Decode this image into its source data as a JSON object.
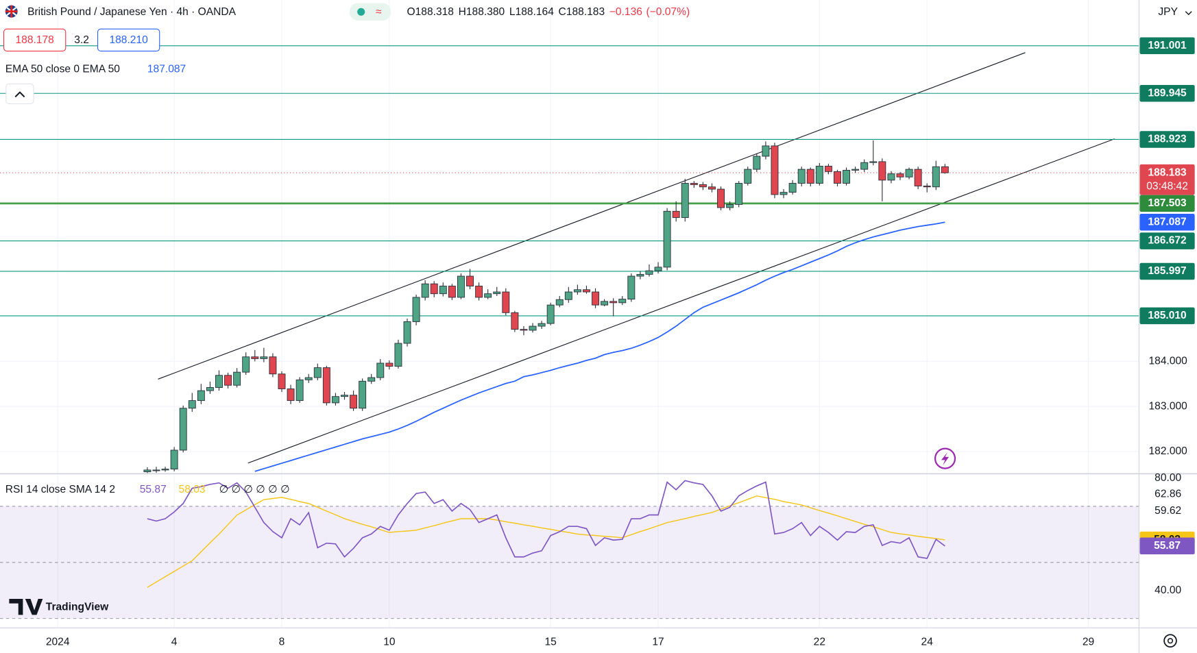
{
  "chart_data": {
    "type": "candlestick",
    "title": "British Pound / Japanese Yen · 4h · OANDA",
    "header": [
      {
        "key": "O",
        "value": 188.318
      },
      {
        "key": "H",
        "value": 188.38,
        "label": "188.380"
      },
      {
        "key": "L",
        "value": 188.164
      },
      {
        "key": "C",
        "value": 188.183
      }
    ],
    "change": {
      "value": -0.136,
      "label": "−0.136"
    },
    "change_pct": {
      "value": -0.07,
      "label": "(−0.07%)"
    },
    "sell": 188.178,
    "spread": 3.2,
    "buy": {
      "value": 188.21,
      "label": "188.210"
    },
    "currency": "JPY",
    "countdown": "03:48:42",
    "logo": "TradingView",
    "up_color": "#4fa486",
    "down_color": "#e0464f",
    "xlim": [
      -16.44,
      110.65
    ],
    "xticks": [
      {
        "value": -10,
        "label": "2024"
      },
      {
        "value": 3,
        "label": "4"
      },
      {
        "value": 15,
        "label": "8"
      },
      {
        "value": 27,
        "label": "10"
      },
      {
        "value": 45,
        "label": "15"
      },
      {
        "value": 57,
        "label": "17"
      },
      {
        "value": 75,
        "label": "22"
      },
      {
        "value": 87,
        "label": "24"
      },
      {
        "value": 105,
        "label": "29"
      }
    ],
    "ylim": [
      181.524,
      192.016
    ],
    "yticks": [
      {
        "value": 182,
        "label": "182.000"
      },
      {
        "value": 183,
        "label": "183.000"
      },
      {
        "value": 184,
        "label": "184.000"
      }
    ],
    "grid": true,
    "levels_color": "#089981",
    "levels": [
      {
        "value": 191.001
      },
      {
        "value": 189.945
      },
      {
        "value": 188.923
      },
      {
        "value": 187.503,
        "bold": true
      },
      {
        "value": 186.672
      },
      {
        "value": 185.997
      },
      {
        "value": 185.01,
        "label": "185.010"
      }
    ],
    "open": [
      181.55,
      181.59,
      181.59,
      181.61,
      182.03,
      182.96,
      183.13,
      183.35,
      183.42,
      183.69,
      183.47,
      183.76,
      184.1,
      184.06,
      184.1,
      183.72,
      183.39,
      183.13,
      183.59,
      183.64,
      183.86,
      183.08,
      183.22,
      183.25,
      182.96,
      183.56,
      183.64,
      183.96,
      183.89,
      184.4,
      184.88,
      185.42,
      185.72,
      185.5,
      185.67,
      185.42,
      185.89,
      185.67,
      185.42,
      185.5,
      185.54,
      185.08,
      184.71,
      184.69,
      184.78,
      184.84,
      185.25,
      185.37,
      185.54,
      185.59,
      185.54,
      185.25,
      185.33,
      185.3,
      185.38,
      185.89,
      185.93,
      186.01,
      186.09,
      187.33,
      187.19,
      187.95,
      187.92,
      187.87,
      187.82,
      187.41,
      187.48,
      187.95,
      188.26,
      188.55,
      188.78,
      187.7,
      187.75,
      187.95,
      188.26,
      187.95,
      188.33,
      188.21,
      187.95,
      188.24,
      188.26,
      188.41,
      188.43,
      188.02,
      188.16,
      188.09,
      188.26,
      187.89,
      187.87,
      188.318
    ],
    "high": [
      181.65,
      181.66,
      181.66,
      182.1,
      183.02,
      183.3,
      183.5,
      183.55,
      183.8,
      183.75,
      183.85,
      184.2,
      184.25,
      184.3,
      184.18,
      183.78,
      183.48,
      183.65,
      183.72,
      183.95,
      183.9,
      183.3,
      183.32,
      183.35,
      183.62,
      183.72,
      184.05,
      184.02,
      184.48,
      184.95,
      185.48,
      185.8,
      185.78,
      185.75,
      185.72,
      185.95,
      186.05,
      185.75,
      185.6,
      185.65,
      185.62,
      185.12,
      184.78,
      184.85,
      184.9,
      185.3,
      185.45,
      185.65,
      185.7,
      185.68,
      185.62,
      185.38,
      185.4,
      185.45,
      185.95,
      186.0,
      186.15,
      186.2,
      187.4,
      187.55,
      188.05,
      188.0,
      187.98,
      187.95,
      187.88,
      187.55,
      188.0,
      188.32,
      188.6,
      188.88,
      188.85,
      187.82,
      188.02,
      188.32,
      188.3,
      188.4,
      188.38,
      188.25,
      188.3,
      188.32,
      188.48,
      188.9,
      188.5,
      188.22,
      188.2,
      188.3,
      188.32,
      187.95,
      188.45,
      188.38
    ],
    "low": [
      181.5,
      181.53,
      181.55,
      181.56,
      181.98,
      182.88,
      183.05,
      183.28,
      183.35,
      183.4,
      183.42,
      183.7,
      184.0,
      183.98,
      183.65,
      183.32,
      183.05,
      183.08,
      183.52,
      183.58,
      183.02,
      183.02,
      183.15,
      182.9,
      182.9,
      183.5,
      183.58,
      183.82,
      183.84,
      184.33,
      184.8,
      185.35,
      185.42,
      185.44,
      185.36,
      185.38,
      185.6,
      185.35,
      185.38,
      185.45,
      185.02,
      184.65,
      184.58,
      184.64,
      184.72,
      184.8,
      185.2,
      185.3,
      185.48,
      185.5,
      185.18,
      185.22,
      185.0,
      185.25,
      185.32,
      185.82,
      185.88,
      185.95,
      186.02,
      187.1,
      187.1,
      187.85,
      187.8,
      187.75,
      187.35,
      187.35,
      187.42,
      187.9,
      188.2,
      188.48,
      187.62,
      187.62,
      187.7,
      187.88,
      187.88,
      187.9,
      188.15,
      187.88,
      187.9,
      188.18,
      188.2,
      188.35,
      187.55,
      187.95,
      188.02,
      188.04,
      187.82,
      187.75,
      187.8,
      188.164
    ],
    "close": [
      181.59,
      181.59,
      181.61,
      182.03,
      182.96,
      183.13,
      183.35,
      183.42,
      183.69,
      183.47,
      183.76,
      184.1,
      184.06,
      184.1,
      183.72,
      183.39,
      183.13,
      183.59,
      183.64,
      183.86,
      183.08,
      183.22,
      183.25,
      182.96,
      183.56,
      183.64,
      183.96,
      183.89,
      184.4,
      184.88,
      185.42,
      185.72,
      185.5,
      185.67,
      185.42,
      185.89,
      185.67,
      185.42,
      185.5,
      185.54,
      185.08,
      184.71,
      184.69,
      184.78,
      184.84,
      185.25,
      185.37,
      185.54,
      185.59,
      185.54,
      185.25,
      185.33,
      185.3,
      185.38,
      185.89,
      185.93,
      186.01,
      186.09,
      187.33,
      187.19,
      187.95,
      187.92,
      187.87,
      187.82,
      187.41,
      187.48,
      187.95,
      188.26,
      188.55,
      188.78,
      187.7,
      187.75,
      187.95,
      188.26,
      187.95,
      188.33,
      188.21,
      187.95,
      188.24,
      188.26,
      188.41,
      188.43,
      188.02,
      188.16,
      188.09,
      188.26,
      187.89,
      187.87,
      188.318,
      188.183
    ],
    "ema": {
      "name": "EMA 50 close 0 EMA 50",
      "color": "#2962ff",
      "values": [
        null,
        null,
        null,
        null,
        null,
        null,
        null,
        null,
        null,
        null,
        null,
        null,
        181.56,
        181.62,
        181.68,
        181.74,
        181.8,
        181.86,
        181.92,
        181.98,
        182.04,
        182.1,
        182.16,
        182.22,
        182.28,
        182.33,
        182.38,
        182.43,
        182.5,
        182.58,
        182.67,
        182.77,
        182.87,
        182.96,
        183.05,
        183.14,
        183.22,
        183.3,
        183.37,
        183.44,
        183.51,
        183.56,
        183.66,
        183.7,
        183.75,
        183.8,
        183.86,
        183.91,
        183.96,
        184.02,
        184.07,
        184.15,
        184.2,
        184.24,
        184.29,
        184.36,
        184.44,
        184.53,
        184.65,
        184.78,
        184.93,
        185.08,
        185.2,
        185.28,
        185.36,
        185.44,
        185.52,
        185.61,
        185.7,
        185.8,
        185.89,
        185.97,
        186.04,
        186.12,
        186.2,
        186.28,
        186.36,
        186.45,
        186.55,
        186.63,
        186.7,
        186.76,
        186.81,
        186.86,
        186.91,
        186.95,
        186.99,
        187.02,
        187.05,
        187.087
      ]
    },
    "rsi": {
      "name": "RSI 14 close SMA 14 2",
      "color": "#7e57c2",
      "values": [
        65.58,
        64.76,
        65.58,
        68.0,
        71.02,
        76.46,
        77.0,
        77.82,
        78.37,
        76.46,
        78.37,
        75.1,
        69.66,
        64.22,
        61.0,
        58.78,
        65.58,
        63.4,
        67.76,
        55.24,
        56.87,
        56.6,
        51.97,
        55.0,
        58.78,
        60.14,
        62.86,
        61.5,
        66.94,
        71.02,
        74.56,
        75.1,
        71.02,
        72.38,
        68.3,
        71.02,
        68.84,
        64.22,
        65.58,
        66.94,
        58.78,
        51.97,
        51.97,
        53.33,
        54.15,
        59.59,
        60.95,
        62.86,
        62.86,
        62.04,
        56.05,
        58.78,
        57.96,
        58.23,
        65.58,
        65.58,
        66.94,
        66.94,
        78.64,
        75.92,
        79.18,
        78.37,
        77.82,
        73.74,
        68.3,
        69.66,
        73.74,
        75.65,
        77.28,
        78.64,
        60.14,
        60.68,
        62.04,
        64.22,
        59.59,
        62.86,
        60.68,
        57.96,
        60.95,
        60.68,
        62.86,
        63.4,
        56.05,
        57.41,
        56.87,
        58.78,
        51.97,
        51.43,
        58.23,
        55.87
      ]
    },
    "rsi_sma": {
      "color": "#f5c518",
      "values": [
        41.1,
        43.0,
        44.9,
        46.8,
        48.7,
        50.6,
        53.8,
        57.0,
        60.1,
        63.5,
        66.9,
        68.7,
        70.6,
        72.4,
        72.8,
        73.2,
        72.5,
        71.7,
        71.0,
        69.7,
        68.3,
        67.0,
        65.6,
        64.6,
        63.6,
        62.7,
        61.7,
        60.7,
        61.0,
        61.2,
        61.5,
        62.3,
        63.1,
        64.0,
        64.8,
        65.6,
        65.6,
        65.6,
        65.6,
        65.1,
        64.5,
        64.0,
        63.4,
        62.9,
        62.3,
        61.8,
        61.2,
        60.7,
        60.1,
        59.8,
        59.6,
        59.3,
        59.1,
        58.8,
        59.9,
        61.0,
        62.0,
        63.1,
        64.2,
        64.9,
        65.6,
        66.4,
        67.1,
        67.8,
        69.0,
        70.2,
        71.3,
        72.5,
        73.7,
        73.1,
        72.5,
        71.7,
        71.1,
        70.5,
        69.5,
        68.5,
        67.6,
        66.6,
        65.6,
        64.6,
        63.6,
        62.7,
        61.7,
        60.7,
        60.2,
        59.8,
        59.3,
        58.9,
        58.5,
        58.03
      ]
    },
    "rsi_extra": "∅ ∅ ∅ ∅ ∅ ∅",
    "rsi_ylim": [
      26.94,
      81.36
    ],
    "rsi_yticks": [
      {
        "value": 80,
        "label": "80.00"
      },
      {
        "value": 40,
        "label": "40.00"
      }
    ],
    "rsi_scale_extra": [
      62.86,
      59.62
    ],
    "rsi_levels": [
      70,
      50,
      30
    ]
  }
}
